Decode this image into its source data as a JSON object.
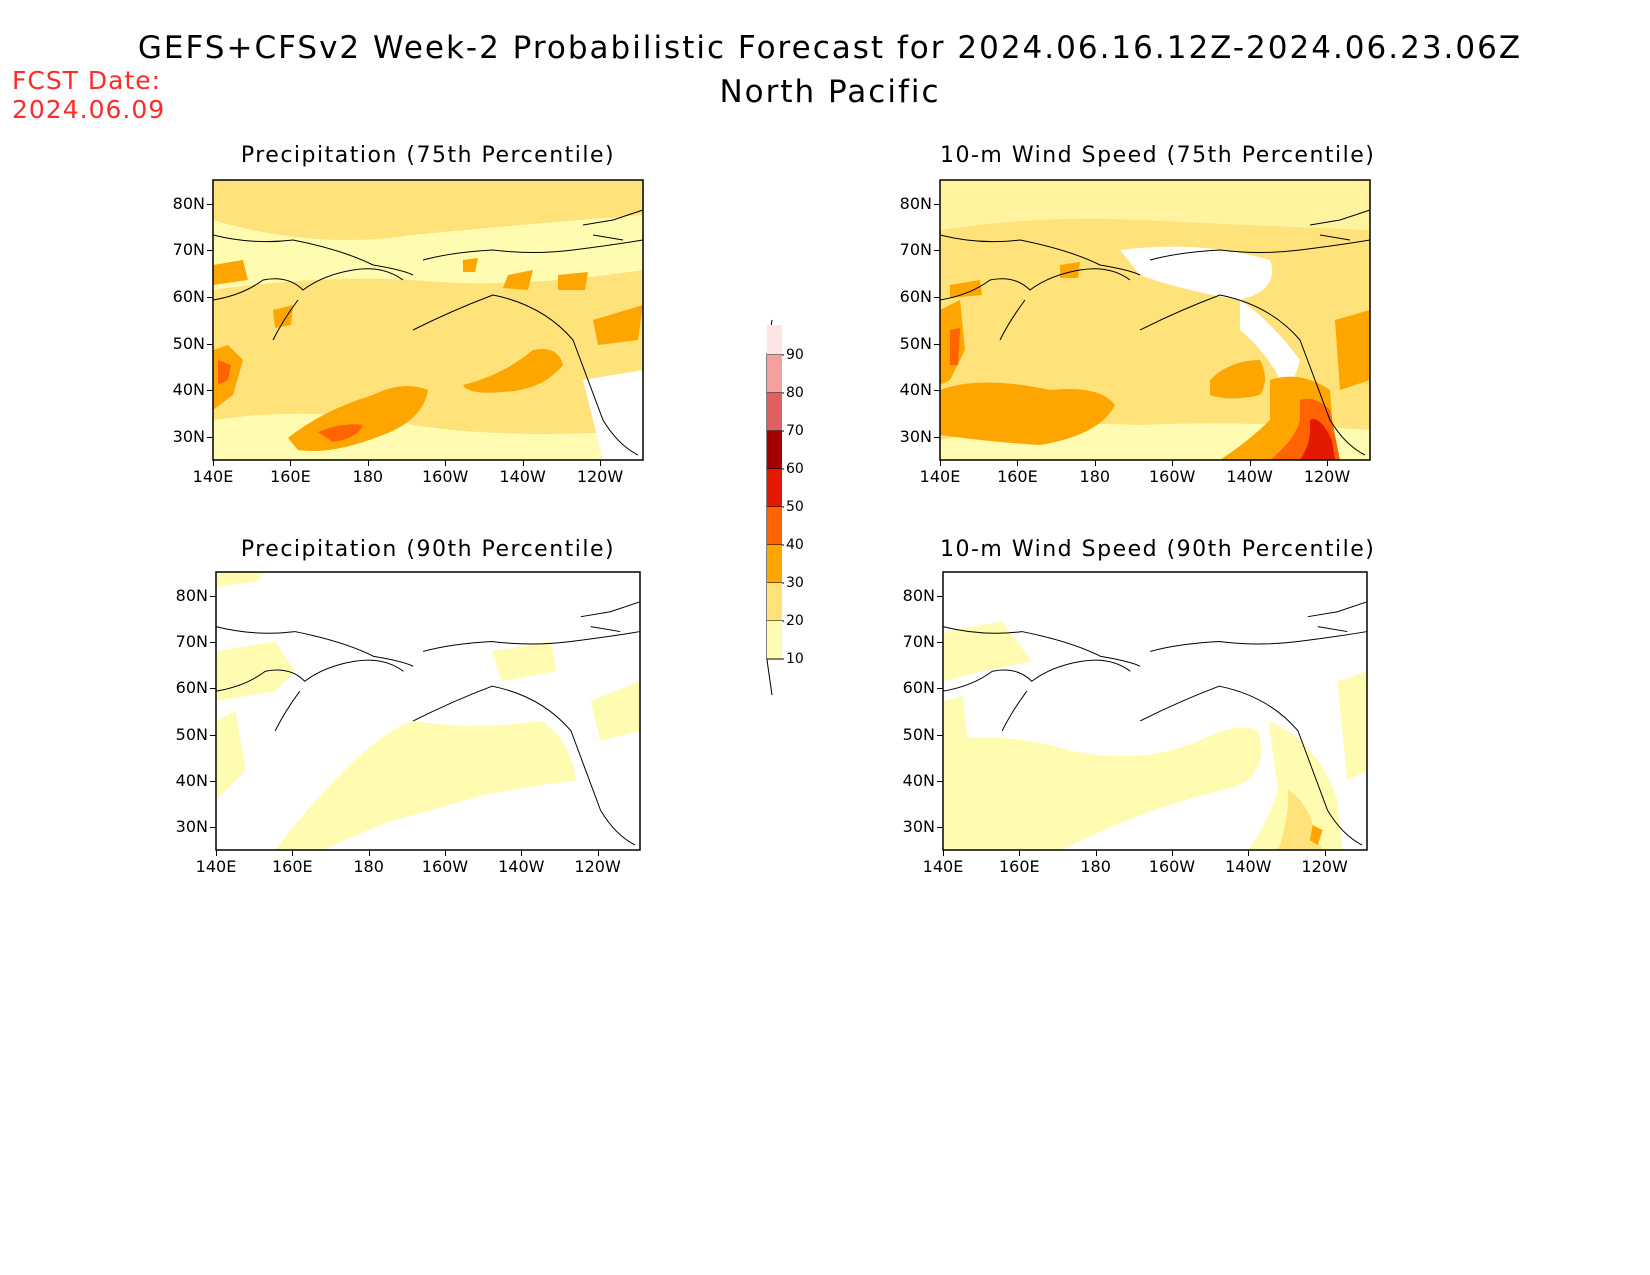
{
  "header": {
    "title": "GEFS+CFSv2 Week-2 Probabilistic Forecast for 2024.06.16.12Z-2024.06.23.06Z",
    "region": "North Pacific",
    "fcst_label": "FCST Date:",
    "fcst_date": "2024.06.09"
  },
  "axes": {
    "lat_labels": [
      "80N",
      "70N",
      "60N",
      "50N",
      "40N",
      "30N"
    ],
    "lon_labels": [
      "140E",
      "160E",
      "180",
      "160W",
      "140W",
      "120W"
    ]
  },
  "panels": [
    {
      "title": "Precipitation (75th Percentile)"
    },
    {
      "title": "10-m Wind Speed (75th Percentile)"
    },
    {
      "title": "Precipitation (90th Percentile)"
    },
    {
      "title": "10-m Wind Speed (90th Percentile)"
    }
  ],
  "legend": {
    "labels": [
      "90",
      "80",
      "70",
      "60",
      "50",
      "40",
      "30",
      "20",
      "10"
    ],
    "colors": {
      "10": "#fffbb0",
      "20": "#ffe27a",
      "30": "#ffa500",
      "40": "#ff6400",
      "50": "#e41a00",
      "60": "#a50000",
      "70": "#e06060",
      "80": "#f5a0a0",
      "90": "#ffe4e4"
    }
  }
}
